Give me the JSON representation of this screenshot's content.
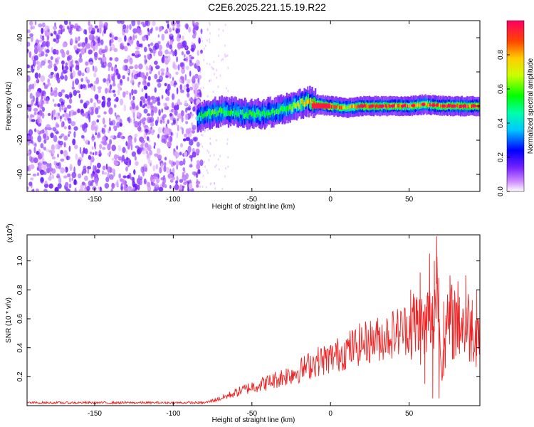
{
  "title": "C2E6.2025.221.15.19.R22",
  "chart_data": [
    {
      "type": "heatmap",
      "xlabel": "Height of straight line (km)",
      "ylabel": "Frequency (Hz)",
      "xlim": [
        -193,
        95
      ],
      "ylim": [
        -50,
        50
      ],
      "xticks": [
        -150,
        -100,
        -50,
        0,
        50
      ],
      "yticks": [
        -40,
        -20,
        0,
        20,
        40
      ],
      "colorbar": {
        "label": "Normalized spectral amplitude",
        "range": [
          0.0,
          1.0
        ],
        "ticks": [
          0.0,
          0.2,
          0.4,
          0.6,
          0.8
        ],
        "tick_labels": [
          "0.0",
          "0.2",
          "0.4",
          "0.6",
          "0.8"
        ]
      },
      "ridge": {
        "x": [
          -85,
          -80,
          -70,
          -60,
          -50,
          -40,
          -30,
          -20,
          -15,
          -10,
          0,
          10,
          20,
          30,
          40,
          50,
          60,
          70,
          80,
          95
        ],
        "frequency": [
          -7,
          -5,
          -3,
          -4,
          -5,
          -4,
          -2,
          1,
          3,
          1,
          0,
          -1,
          0,
          0,
          0,
          0,
          1,
          0,
          0,
          0
        ],
        "amplitude": [
          0.45,
          0.55,
          0.55,
          0.5,
          0.55,
          0.5,
          0.55,
          0.7,
          0.8,
          0.85,
          0.95,
          0.7,
          0.9,
          0.9,
          0.9,
          0.85,
          0.8,
          0.9,
          0.9,
          0.9
        ]
      },
      "noise_region_x": [
        -193,
        -85
      ]
    },
    {
      "type": "line",
      "xlabel": "Height of straight line (km)",
      "ylabel": "SNR (10 * v/v)",
      "scale_label": "(x10",
      "scale_exponent": "4",
      "scale_suffix": ")",
      "xlim": [
        -193,
        95
      ],
      "ylim": [
        0,
        1.18
      ],
      "xticks": [
        -150,
        -100,
        -50,
        0,
        50
      ],
      "yticks": [
        0.2,
        0.4,
        0.6,
        0.8,
        1.0
      ],
      "ytick_labels": [
        "0.2",
        "0.4",
        "0.6",
        "0.8",
        "1.0"
      ],
      "series": [
        {
          "color": "#ee2222",
          "x": [
            -193,
            -150,
            -100,
            -80,
            -70,
            -60,
            -50,
            -40,
            -30,
            -20,
            -10,
            0,
            10,
            20,
            30,
            40,
            50,
            55,
            60,
            62,
            65,
            68,
            70,
            75,
            80,
            85,
            90,
            95
          ],
          "y": [
            0.02,
            0.02,
            0.02,
            0.02,
            0.05,
            0.09,
            0.13,
            0.16,
            0.2,
            0.24,
            0.3,
            0.33,
            0.38,
            0.43,
            0.46,
            0.5,
            0.54,
            0.56,
            0.52,
            0.6,
            0.55,
            0.9,
            0.3,
            0.55,
            0.6,
            0.55,
            0.55,
            0.5
          ],
          "spikes": [
            {
              "x": 51,
              "y": 0.8
            },
            {
              "x": 55,
              "y": 0.75
            },
            {
              "x": 57,
              "y": 0.92
            },
            {
              "x": 60,
              "y": 0.15
            },
            {
              "x": 63,
              "y": 1.05
            },
            {
              "x": 65,
              "y": 0.05
            },
            {
              "x": 66,
              "y": 1.0
            },
            {
              "x": 67.5,
              "y": 1.17
            },
            {
              "x": 69,
              "y": 0.05
            },
            {
              "x": 72,
              "y": 0.72
            },
            {
              "x": 76,
              "y": 0.9
            },
            {
              "x": 82,
              "y": 0.75
            },
            {
              "x": 86,
              "y": 0.9
            },
            {
              "x": 90,
              "y": 0.45
            },
            {
              "x": 93,
              "y": 0.8
            }
          ]
        }
      ]
    }
  ]
}
